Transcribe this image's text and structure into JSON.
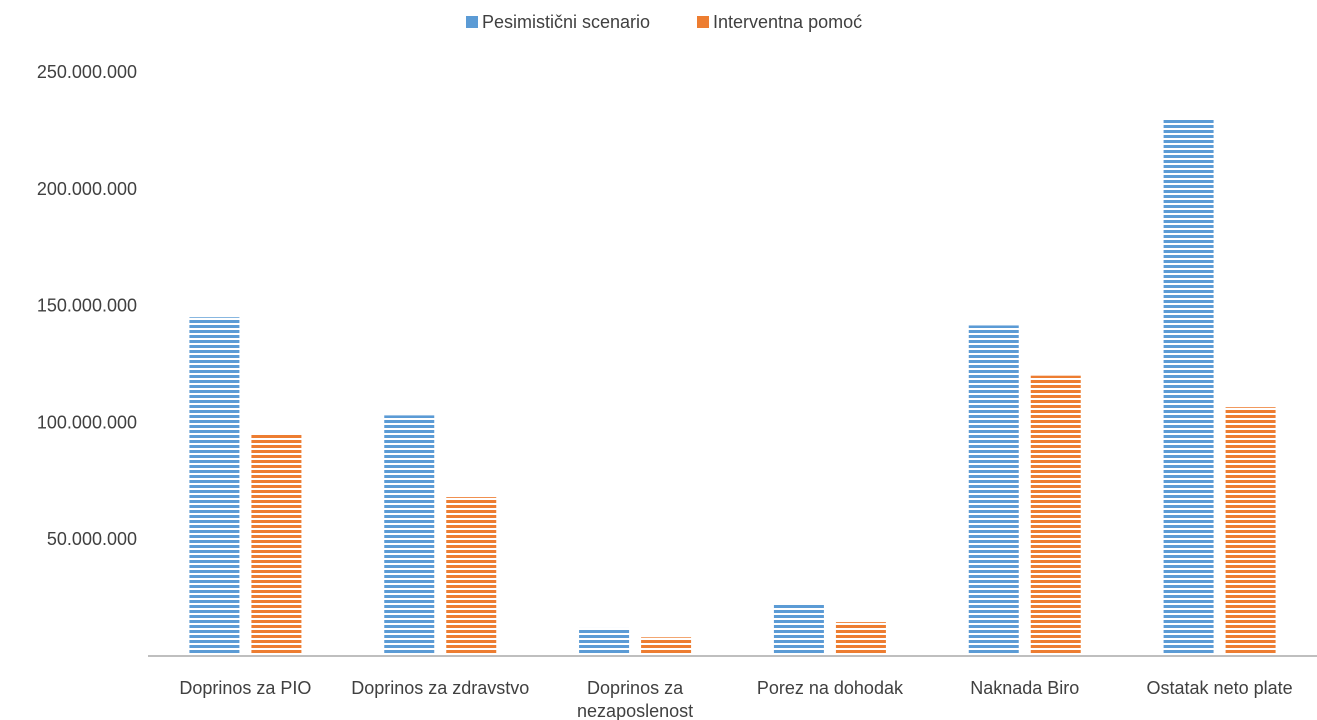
{
  "chart_data": {
    "type": "bar",
    "categories": [
      [
        "Doprinos za PIO"
      ],
      [
        "Doprinos za zdravstvo"
      ],
      [
        "Doprinos za",
        "nezaposlenost"
      ],
      [
        "Porez na dohodak"
      ],
      [
        "Naknada Biro"
      ],
      [
        "Ostatak neto plate"
      ]
    ],
    "series": [
      {
        "name": "Pesimistični scenario",
        "color": "#5b9bd5",
        "values": [
          145000000,
          103000000,
          12000000,
          22000000,
          141500000,
          230000000
        ]
      },
      {
        "name": "Interventna pomoć",
        "color": "#ed7d31",
        "values": [
          95000000,
          68000000,
          8000000,
          14500000,
          120000000,
          106500000
        ]
      }
    ],
    "yticks": [
      "250.000.000",
      "200.000.000",
      "150.000.000",
      "100.000.000",
      "50.000.000"
    ],
    "ytick_values": [
      250000000,
      200000000,
      150000000,
      100000000,
      50000000
    ],
    "ylim": [
      0,
      250000000
    ],
    "grid": false,
    "legend": "top-center",
    "title": "",
    "xlabel": "",
    "ylabel": ""
  }
}
